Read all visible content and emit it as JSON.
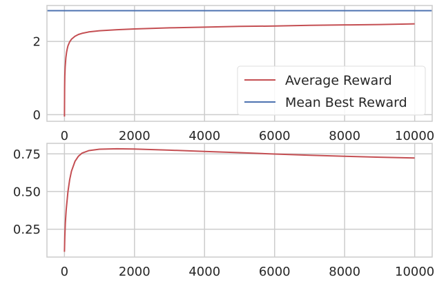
{
  "chart_data": [
    {
      "type": "line",
      "title": "",
      "xlabel": "",
      "ylabel": "",
      "xlim": [
        -500,
        10500
      ],
      "ylim": [
        -0.18,
        2.98
      ],
      "xticks": [
        0,
        2000,
        4000,
        6000,
        8000,
        10000
      ],
      "yticks": [
        0,
        2
      ],
      "grid": true,
      "legend": {
        "position": "lower-right"
      },
      "series": [
        {
          "name": "Average Reward",
          "color": "#c44e52",
          "x": [
            0,
            5,
            10,
            20,
            40,
            60,
            80,
            100,
            150,
            200,
            300,
            400,
            500,
            700,
            1000,
            1500,
            2000,
            3000,
            4000,
            5000,
            6000,
            7000,
            8000,
            9000,
            10000
          ],
          "y": [
            -0.05,
            0.75,
            1.05,
            1.3,
            1.55,
            1.7,
            1.8,
            1.88,
            1.99,
            2.06,
            2.14,
            2.19,
            2.22,
            2.26,
            2.29,
            2.32,
            2.34,
            2.37,
            2.39,
            2.41,
            2.42,
            2.44,
            2.45,
            2.46,
            2.48
          ]
        },
        {
          "name": "Mean Best Reward",
          "color": "#4c72b0",
          "x": [
            -500,
            10500
          ],
          "y": [
            2.84,
            2.84
          ]
        }
      ]
    },
    {
      "type": "line",
      "title": "",
      "xlabel": "",
      "ylabel": "",
      "xlim": [
        -500,
        10500
      ],
      "ylim": [
        0.065,
        0.82
      ],
      "xticks": [
        0,
        2000,
        4000,
        6000,
        8000,
        10000
      ],
      "yticks": [
        0.25,
        0.5,
        0.75
      ],
      "grid": true,
      "series": [
        {
          "name": "",
          "color": "#c44e52",
          "x": [
            0,
            10,
            25,
            50,
            100,
            150,
            200,
            300,
            400,
            500,
            700,
            1000,
            1500,
            2000,
            3000,
            4000,
            5000,
            6000,
            7000,
            8000,
            9000,
            10000
          ],
          "y": [
            0.1,
            0.2,
            0.29,
            0.38,
            0.5,
            0.58,
            0.635,
            0.7,
            0.735,
            0.755,
            0.772,
            0.781,
            0.784,
            0.782,
            0.775,
            0.766,
            0.758,
            0.749,
            0.741,
            0.734,
            0.728,
            0.723
          ]
        }
      ]
    }
  ]
}
